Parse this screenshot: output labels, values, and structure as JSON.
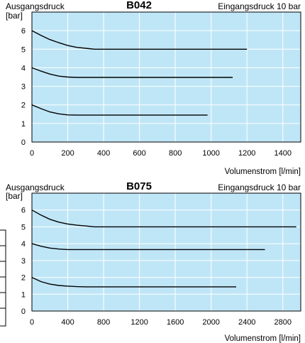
{
  "chart_data": [
    {
      "type": "line",
      "title": "B042",
      "ylabel": [
        "Ausgangsdruck",
        "[bar]"
      ],
      "input_pressure_note": "Eingangsdruck 10 bar",
      "xlabel": "Volumenstrom [l/min]",
      "xlim": [
        0,
        1500
      ],
      "ylim": [
        0,
        7
      ],
      "x_ticks": [
        0,
        200,
        400,
        600,
        800,
        1000,
        1200,
        1400
      ],
      "y_ticks": [
        0,
        1,
        2,
        3,
        4,
        5,
        6
      ],
      "grid": true,
      "series": [
        {
          "x": [
            0,
            50,
            100,
            150,
            200,
            250,
            300,
            350,
            400,
            1200
          ],
          "y": [
            6.0,
            5.75,
            5.52,
            5.35,
            5.2,
            5.1,
            5.05,
            5.0,
            5.0,
            5.0
          ]
        },
        {
          "x": [
            0,
            50,
            100,
            150,
            200,
            250,
            300,
            1120
          ],
          "y": [
            4.0,
            3.82,
            3.66,
            3.55,
            3.5,
            3.48,
            3.48,
            3.48
          ]
        },
        {
          "x": [
            0,
            50,
            100,
            150,
            200,
            250,
            300,
            980
          ],
          "y": [
            2.0,
            1.8,
            1.62,
            1.52,
            1.46,
            1.45,
            1.45,
            1.45
          ]
        }
      ]
    },
    {
      "type": "line",
      "title": "B075",
      "ylabel": [
        "Ausgangsdruck",
        "[bar]"
      ],
      "input_pressure_note": "Eingangsdruck 10 bar",
      "xlabel": "Volumenstrom [l/min]",
      "xlim": [
        0,
        3000
      ],
      "ylim": [
        0,
        7
      ],
      "x_ticks": [
        0,
        400,
        800,
        1200,
        1600,
        2000,
        2400,
        2800
      ],
      "y_ticks": [
        0,
        1,
        2,
        3,
        4,
        5,
        6
      ],
      "grid": true,
      "series": [
        {
          "x": [
            0,
            100,
            200,
            300,
            400,
            500,
            600,
            700,
            2950
          ],
          "y": [
            6.0,
            5.7,
            5.45,
            5.28,
            5.17,
            5.1,
            5.05,
            5.0,
            5.0
          ]
        },
        {
          "x": [
            0,
            100,
            200,
            300,
            400,
            2600
          ],
          "y": [
            4.0,
            3.85,
            3.74,
            3.68,
            3.65,
            3.65
          ]
        },
        {
          "x": [
            0,
            100,
            200,
            300,
            400,
            500,
            600,
            2280
          ],
          "y": [
            2.0,
            1.75,
            1.6,
            1.52,
            1.48,
            1.45,
            1.44,
            1.44
          ]
        }
      ]
    }
  ]
}
